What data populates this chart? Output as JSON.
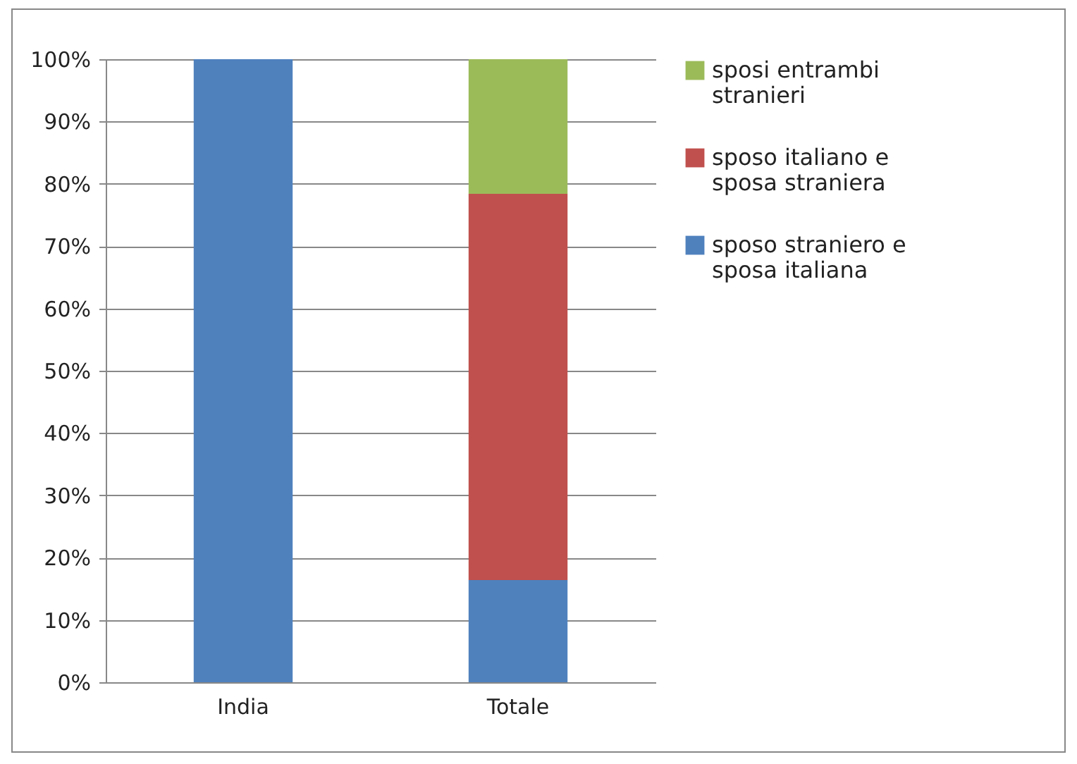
{
  "chart_data": {
    "type": "bar",
    "stacked": true,
    "categories": [
      "India",
      "Totale"
    ],
    "series": [
      {
        "name": "sposo straniero e sposa italiana",
        "color": "#4f81bd",
        "values": [
          100,
          16.4
        ]
      },
      {
        "name": "sposo italiano e sposa straniera",
        "color": "#c0504d",
        "values": [
          0,
          62
        ]
      },
      {
        "name": "sposi entrambi stranieri",
        "color": "#9bbb59",
        "values": [
          0,
          21.6
        ]
      }
    ],
    "ylim": [
      0,
      100
    ],
    "yticks": [
      {
        "value": 0,
        "label": "0%"
      },
      {
        "value": 10,
        "label": "10%"
      },
      {
        "value": 20,
        "label": "20%"
      },
      {
        "value": 30,
        "label": "30%"
      },
      {
        "value": 40,
        "label": "40%"
      },
      {
        "value": 50,
        "label": "50%"
      },
      {
        "value": 60,
        "label": "60%"
      },
      {
        "value": 70,
        "label": "70%"
      },
      {
        "value": 80,
        "label": "80%"
      },
      {
        "value": 90,
        "label": "90%"
      },
      {
        "value": 100,
        "label": "100%"
      }
    ],
    "grid": "y",
    "legend": "right"
  }
}
